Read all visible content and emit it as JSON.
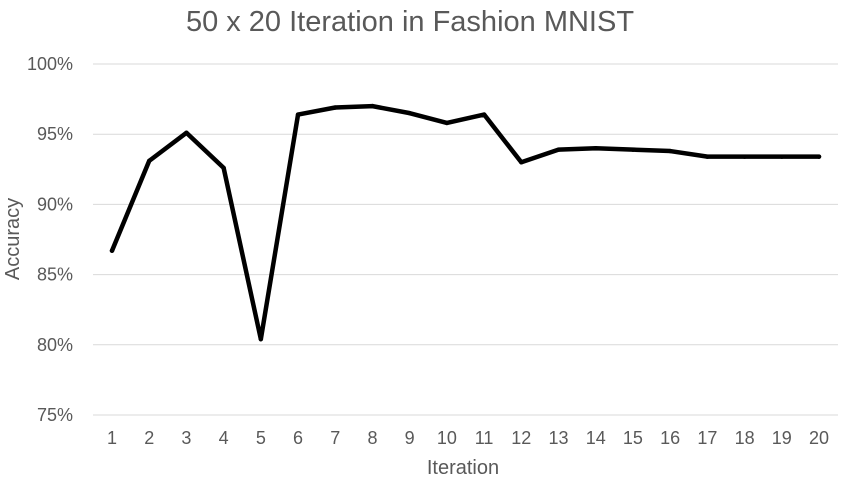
{
  "chart_data": {
    "type": "line",
    "title": "50 x 20 Iteration in Fashion MNIST",
    "xlabel": "Iteration",
    "ylabel": "Accuracy",
    "x": [
      1,
      2,
      3,
      4,
      5,
      6,
      7,
      8,
      9,
      10,
      11,
      12,
      13,
      14,
      15,
      16,
      17,
      18,
      19,
      20
    ],
    "x_tick_labels": [
      "1",
      "2",
      "3",
      "4",
      "5",
      "6",
      "7",
      "8",
      "9",
      "10",
      "11",
      "12",
      "13",
      "14",
      "15",
      "16",
      "17",
      "18",
      "19",
      "20"
    ],
    "series": [
      {
        "values": [
          86.7,
          93.1,
          95.1,
          92.6,
          80.4,
          96.4,
          96.9,
          97.0,
          96.5,
          95.8,
          96.4,
          93.0,
          93.9,
          94.0,
          93.9,
          93.8,
          93.4,
          93.4,
          93.4,
          93.4
        ]
      }
    ],
    "ylim": [
      75,
      100
    ],
    "y_ticks": [
      75,
      80,
      85,
      90,
      95,
      100
    ],
    "y_tick_labels": [
      "75%",
      "80%",
      "85%",
      "90%",
      "95%",
      "100%"
    ],
    "grid": "horizontal",
    "line_color": "#000000",
    "grid_color": "#d9d9d9",
    "text_color": "#595959"
  }
}
